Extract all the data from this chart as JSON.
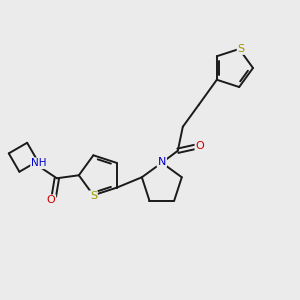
{
  "background_color": "#ebebeb",
  "bond_color": "#1a1a1a",
  "figsize": [
    3.0,
    3.0
  ],
  "dpi": 100,
  "atom_colors": {
    "S": "#999900",
    "N": "#0000cc",
    "O": "#cc0000",
    "H": "#444444",
    "C": "#1a1a1a"
  },
  "bond_lw": 1.4,
  "font_size": 7.5
}
